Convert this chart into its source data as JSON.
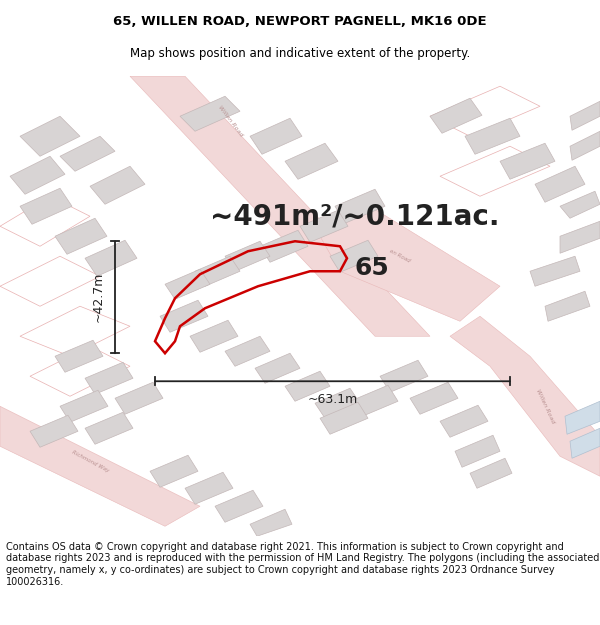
{
  "title_line1": "65, WILLEN ROAD, NEWPORT PAGNELL, MK16 0DE",
  "title_line2": "Map shows position and indicative extent of the property.",
  "area_text": "~491m²/~0.121ac.",
  "label_number": "65",
  "dim_width": "~63.1m",
  "dim_height": "~42.7m",
  "footer_text": "Contains OS data © Crown copyright and database right 2021. This information is subject to Crown copyright and database rights 2023 and is reproduced with the permission of HM Land Registry. The polygons (including the associated geometry, namely x, y co-ordinates) are subject to Crown copyright and database rights 2023 Ordnance Survey 100026316.",
  "bg_color": "#ffffff",
  "map_bg_color": "#f7f5f5",
  "plot_outline_color": "#cc0000",
  "road_color_fill": "#f2d8d8",
  "road_color_edge": "#e8b8b8",
  "building_color": "#d8d4d4",
  "building_outline": "#c4b8b8",
  "title_fontsize": 9.5,
  "subtitle_fontsize": 8.5,
  "area_fontsize": 20,
  "label_fontsize": 18,
  "dim_fontsize": 9,
  "footer_fontsize": 7.0
}
